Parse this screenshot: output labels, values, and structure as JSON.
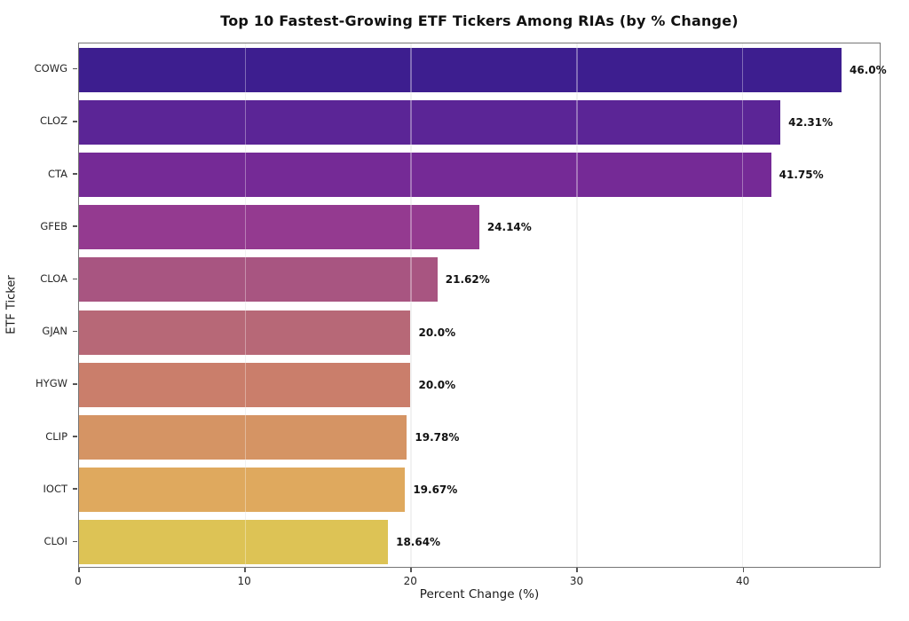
{
  "chart_data": {
    "type": "bar",
    "orientation": "horizontal",
    "title": "Top 10 Fastest-Growing ETF Tickers Among RIAs (by % Change)",
    "xlabel": "Percent Change (%)",
    "ylabel": "ETF Ticker",
    "categories": [
      "COWG",
      "CLOZ",
      "CTA",
      "GFEB",
      "CLOA",
      "GJAN",
      "HYGW",
      "CLIP",
      "IOCT",
      "CLOI"
    ],
    "values": [
      46.0,
      42.31,
      41.75,
      24.14,
      21.62,
      20.0,
      20.0,
      19.78,
      19.67,
      18.64
    ],
    "value_labels": [
      "46.0%",
      "42.31%",
      "41.75%",
      "24.14%",
      "21.62%",
      "20.0%",
      "20.0%",
      "19.78%",
      "19.67%",
      "18.64%"
    ],
    "bar_colors": [
      "#3d1e8f",
      "#5b2596",
      "#752a96",
      "#943a90",
      "#a85581",
      "#b76877",
      "#ca7e6b",
      "#d59464",
      "#dfa95e",
      "#ddc355"
    ],
    "xlim": [
      0,
      48.3
    ],
    "xticks": [
      0,
      10,
      20,
      30,
      40
    ],
    "xtick_labels": [
      "0",
      "10",
      "20",
      "30",
      "40"
    ],
    "grid": "vertical-light",
    "legend": "none",
    "background_color": "#ffffff",
    "spine_color": "#757575"
  }
}
